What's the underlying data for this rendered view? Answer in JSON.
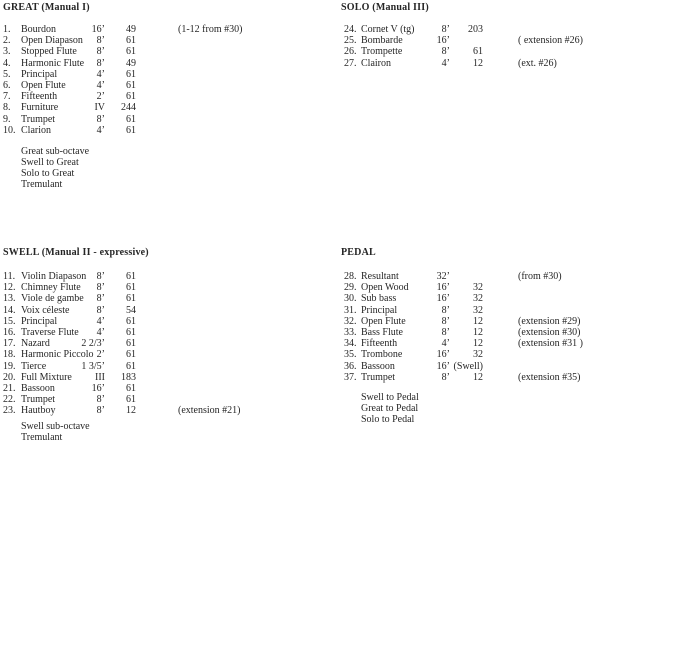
{
  "document": {
    "kind": "pipe-organ stop list",
    "background_color": "#ffffff",
    "text_color": "#262626"
  },
  "sections": [
    {
      "id": "great",
      "title": "GREAT (Manual I)",
      "rows": [
        {
          "num": "1.",
          "name": "Bourdon",
          "pitch": "16’",
          "count": "49",
          "note": "(1-12 from #30)"
        },
        {
          "num": "2.",
          "name": "Open Diapason",
          "pitch": "8’",
          "count": "61",
          "note": ""
        },
        {
          "num": "3.",
          "name": "Stopped Flute",
          "pitch": "8’",
          "count": "61",
          "note": ""
        },
        {
          "num": "4.",
          "name": "Harmonic Flute",
          "pitch": "8’",
          "count": "49",
          "note": ""
        },
        {
          "num": "5.",
          "name": "Principal",
          "pitch": "4’",
          "count": "61",
          "note": ""
        },
        {
          "num": "6.",
          "name": "Open Flute",
          "pitch": "4’",
          "count": "61",
          "note": ""
        },
        {
          "num": "7.",
          "name": "Fifteenth",
          "pitch": "2’",
          "count": "61",
          "note": ""
        },
        {
          "num": "8.",
          "name": "Furniture",
          "pitch": "IV",
          "count": "244",
          "note": ""
        },
        {
          "num": "9.",
          "name": "Trumpet",
          "pitch": "8’",
          "count": "61",
          "note": ""
        },
        {
          "num": "10.",
          "name": "Clarion",
          "pitch": "4’",
          "count": "61",
          "note": ""
        }
      ],
      "couplers": [
        "Great sub-octave",
        "Swell to Great",
        "Solo to Great",
        "Tremulant"
      ]
    },
    {
      "id": "solo",
      "title": "SOLO (Manual III)",
      "rows": [
        {
          "num": "24.",
          "name": "Cornet V (tg)",
          "pitch": "8’",
          "count": "203",
          "note": ""
        },
        {
          "num": "25.",
          "name": "Bombarde",
          "pitch": "16’",
          "count": "",
          "note": "( extension #26)"
        },
        {
          "num": "26.",
          "name": "Trompette",
          "pitch": "8’",
          "count": "61",
          "note": ""
        },
        {
          "num": "27.",
          "name": "Clairon",
          "pitch": "4’",
          "count": "12",
          "note": "(ext. #26)"
        }
      ],
      "couplers": []
    },
    {
      "id": "swell",
      "title": "SWELL (Manual II - expressive)",
      "rows": [
        {
          "num": "11.",
          "name": "Violin Diapason",
          "pitch": "8’",
          "count": "61",
          "note": ""
        },
        {
          "num": "12.",
          "name": "Chimney Flute",
          "pitch": "8’",
          "count": "61",
          "note": ""
        },
        {
          "num": "13.",
          "name": "Viole de gambe",
          "pitch": "8’",
          "count": "61",
          "note": ""
        },
        {
          "num": "14.",
          "name": "Voix céleste",
          "pitch": "8’",
          "count": "54",
          "note": ""
        },
        {
          "num": "15.",
          "name": "Principal",
          "pitch": "4’",
          "count": "61",
          "note": ""
        },
        {
          "num": "16.",
          "name": "Traverse Flute",
          "pitch": "4’",
          "count": "61",
          "note": ""
        },
        {
          "num": "17.",
          "name": "Nazard",
          "pitch": "2 2/3’",
          "count": "61",
          "note": ""
        },
        {
          "num": "18.",
          "name": "Harmonic Piccolo",
          "pitch": "2’",
          "count": "61",
          "note": ""
        },
        {
          "num": "19.",
          "name": "Tierce",
          "pitch": "1 3/5’",
          "count": "61",
          "note": ""
        },
        {
          "num": "20.",
          "name": "Full Mixture",
          "pitch": "III",
          "count": "183",
          "note": ""
        },
        {
          "num": "21.",
          "name": "Bassoon",
          "pitch": "16’",
          "count": "61",
          "note": ""
        },
        {
          "num": "22.",
          "name": "Trumpet",
          "pitch": "8’",
          "count": "61",
          "note": ""
        },
        {
          "num": "23.",
          "name": "Hautboy",
          "pitch": "8’",
          "count": "12",
          "note": "(extension #21)"
        }
      ],
      "couplers": [
        "Swell sub-octave",
        "Tremulant"
      ]
    },
    {
      "id": "pedal",
      "title": "PEDAL",
      "rows": [
        {
          "num": "28.",
          "name": "Resultant",
          "pitch": "32’",
          "count": "",
          "note": "(from #30)"
        },
        {
          "num": "29.",
          "name": "Open Wood",
          "pitch": "16’",
          "count": "32",
          "note": ""
        },
        {
          "num": "30.",
          "name": "Sub bass",
          "pitch": "16’",
          "count": "32",
          "note": ""
        },
        {
          "num": "31.",
          "name": "Principal",
          "pitch": "8’",
          "count": "32",
          "note": ""
        },
        {
          "num": "32.",
          "name": "Open Flute",
          "pitch": "8’",
          "count": "12",
          "note": "(extension #29)"
        },
        {
          "num": "33.",
          "name": "Bass Flute",
          "pitch": "8’",
          "count": "12",
          "note": "(extension #30)"
        },
        {
          "num": "34.",
          "name": "Fifteenth",
          "pitch": "4’",
          "count": "12",
          "note": "(extension #31 )"
        },
        {
          "num": "35.",
          "name": "Trombone",
          "pitch": "16’",
          "count": "32",
          "note": ""
        },
        {
          "num": "36.",
          "name": "Bassoon",
          "pitch": "16’",
          "count": "(Swell)",
          "note": ""
        },
        {
          "num": "37.",
          "name": "Trumpet",
          "pitch": "8’",
          "count": "12",
          "note": "(extension #35)"
        }
      ],
      "couplers": [
        "Swell to Pedal",
        "Great to Pedal",
        "Solo to Pedal"
      ]
    }
  ]
}
